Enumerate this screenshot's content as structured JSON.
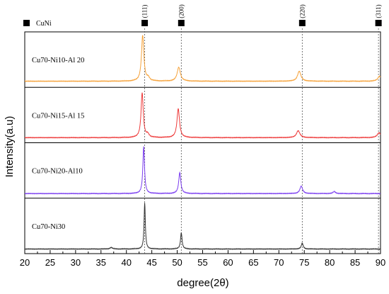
{
  "chart_data": {
    "type": "line",
    "xlabel": "degree(2θ)",
    "ylabel": "Intensity(a.u)",
    "xlim": [
      20,
      90
    ],
    "x_ticks": [
      "20",
      "25",
      "30",
      "35",
      "40",
      "45",
      "50",
      "55",
      "60",
      "65",
      "70",
      "75",
      "80",
      "85",
      "90"
    ],
    "legend": {
      "label": "CuNi",
      "marker": "filled-square",
      "placement": "top-left"
    },
    "reference_peaks": [
      {
        "label": "(111)",
        "x": 43.6
      },
      {
        "label": "(200)",
        "x": 50.8
      },
      {
        "label": "(220)",
        "x": 74.6
      },
      {
        "label": "(311)",
        "x": 89.6
      }
    ],
    "series": [
      {
        "name": "Cu70-Ni10-Al 20",
        "color": "#f5a23a",
        "baseline": 0.08,
        "peaks": [
          {
            "x": 43.2,
            "height": 0.92,
            "width": 0.28
          },
          {
            "x": 44.3,
            "height": 0.06,
            "width": 0.3
          },
          {
            "x": 50.3,
            "height": 0.28,
            "width": 0.38
          },
          {
            "x": 74.0,
            "height": 0.2,
            "width": 0.4
          },
          {
            "x": 89.8,
            "height": 0.1,
            "width": 0.4
          }
        ]
      },
      {
        "name": "Cu70-Ni15-Al 15",
        "color": "#ee3a3a",
        "baseline": 0.06,
        "peaks": [
          {
            "x": 43.1,
            "height": 0.9,
            "width": 0.26
          },
          {
            "x": 44.2,
            "height": 0.06,
            "width": 0.3
          },
          {
            "x": 50.2,
            "height": 0.58,
            "width": 0.3
          },
          {
            "x": 73.8,
            "height": 0.14,
            "width": 0.4
          },
          {
            "x": 89.7,
            "height": 0.1,
            "width": 0.4
          }
        ]
      },
      {
        "name": "Cu70-Ni20-Al10",
        "color": "#7a3cf0",
        "baseline": 0.05,
        "peaks": [
          {
            "x": 43.4,
            "height": 0.94,
            "width": 0.2
          },
          {
            "x": 50.5,
            "height": 0.42,
            "width": 0.25
          },
          {
            "x": 74.4,
            "height": 0.15,
            "width": 0.32
          },
          {
            "x": 80.9,
            "height": 0.04,
            "width": 0.3
          }
        ]
      },
      {
        "name": "Cu70-Ni30",
        "color": "#333333",
        "baseline": 0.05,
        "peaks": [
          {
            "x": 37.0,
            "height": 0.03,
            "width": 0.3
          },
          {
            "x": 43.6,
            "height": 0.93,
            "width": 0.15
          },
          {
            "x": 50.8,
            "height": 0.33,
            "width": 0.18
          },
          {
            "x": 74.6,
            "height": 0.12,
            "width": 0.22
          }
        ]
      }
    ]
  }
}
